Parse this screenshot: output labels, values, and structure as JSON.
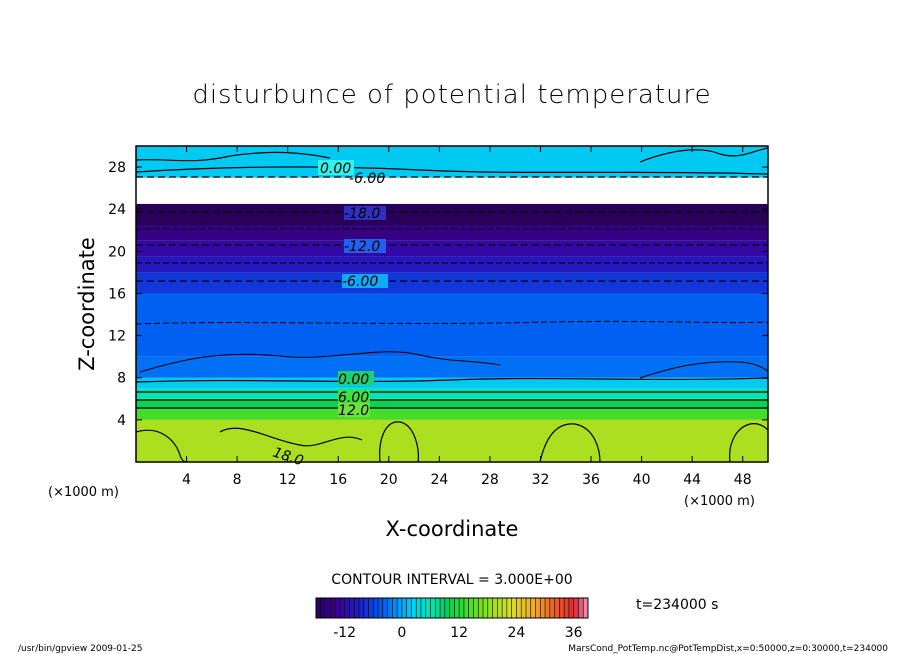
{
  "chart_data": {
    "type": "heatmap",
    "title": "disturbunce of potential temperature",
    "xlabel": "X-coordinate",
    "ylabel": "Z-coordinate",
    "x_unit": "(×1000 m)",
    "z_unit": "(×1000 m)",
    "x_range": [
      0,
      50
    ],
    "z_range": [
      0,
      30
    ],
    "x_ticks": [
      "4",
      "8",
      "12",
      "16",
      "20",
      "24",
      "28",
      "32",
      "36",
      "40",
      "44",
      "48"
    ],
    "z_ticks": [
      "4",
      "8",
      "12",
      "16",
      "20",
      "24",
      "28"
    ],
    "contour_interval_text": "CONTOUR INTERVAL = 3.000E+00",
    "time_text": "t=234000 s",
    "contour_labels": [
      "0.00",
      "6.00",
      "12.0",
      "18.0",
      "-18.0",
      "-12.0",
      "-6.00",
      "0.00",
      "-6.00"
    ],
    "colorbar": {
      "min": -18,
      "max": 39,
      "tick_labels": [
        "-12",
        "0",
        "12",
        "24",
        "36"
      ]
    },
    "layers": [
      {
        "z_from": 0,
        "z_to": 4.0,
        "value": 20
      },
      {
        "z_from": 4.0,
        "z_to": 5.0,
        "value": 14
      },
      {
        "z_from": 5.0,
        "z_to": 6.0,
        "value": 10
      },
      {
        "z_from": 6.0,
        "z_to": 7.0,
        "value": 6
      },
      {
        "z_from": 7.0,
        "z_to": 8.0,
        "value": 2
      },
      {
        "z_from": 8.0,
        "z_to": 10.0,
        "value": -3
      },
      {
        "z_from": 10.0,
        "z_to": 16.0,
        "value": -4
      },
      {
        "z_from": 16.0,
        "z_to": 18.0,
        "value": -7
      },
      {
        "z_from": 18.0,
        "z_to": 19.5,
        "value": -10
      },
      {
        "z_from": 19.5,
        "z_to": 21.0,
        "value": -12
      },
      {
        "z_from": 21.0,
        "z_to": 22.5,
        "value": -15
      },
      {
        "z_from": 22.5,
        "z_to": 24.5,
        "value": -18
      },
      {
        "z_from": 27.0,
        "z_to": 30.0,
        "value": 2
      }
    ]
  },
  "footer": {
    "left": "/usr/bin/gpview   2009-01-25",
    "right": "MarsCond_PotTemp.nc@PotTempDist,x=0:50000,z=0:30000,t=234000"
  }
}
